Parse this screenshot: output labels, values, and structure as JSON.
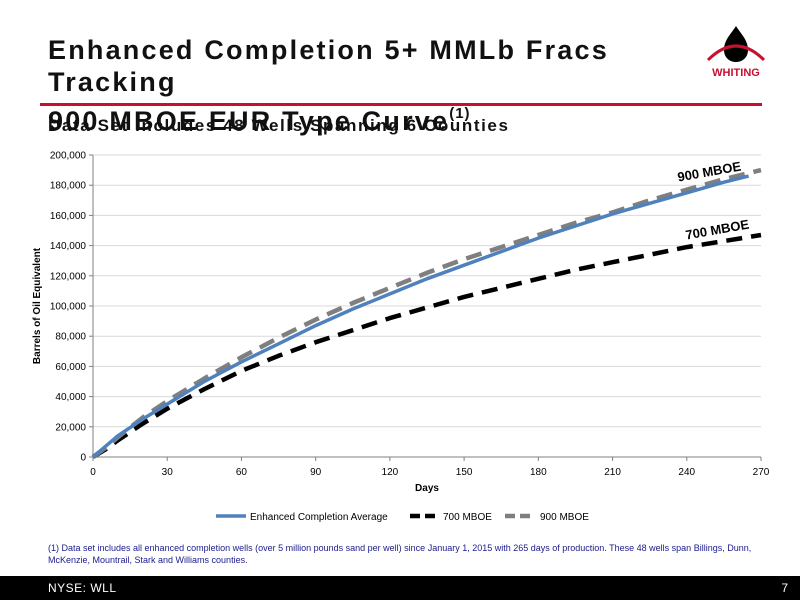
{
  "slide": {
    "title_line1": "Enhanced Completion 5+ MMLb Fracs Tracking",
    "title_line2": "900 MBOE EUR Type Curve",
    "title_superscript": "(1)",
    "subtitle": "Data Set Includes 48 Wells Spanning 6 Counties",
    "logo_text": "WHITING",
    "footnote": "(1) Data set includes all enhanced completion wells (over 5 million pounds sand per well) since January 1, 2015 with 265 days of production.  These 48 wells span Billings, Dunn, McKenzie, Mountrail, Stark and Williams counties.",
    "footer_ticker": "NYSE:  WLL",
    "page_number": "7"
  },
  "colors": {
    "accent_red": "#c8102e",
    "enhanced_line": "#4f81bd",
    "mboe_700_line": "#000000",
    "mboe_900_line": "#7f7f7f",
    "footnote_text": "#1a1a8c"
  },
  "chart_data": {
    "type": "line",
    "xlabel": "Days",
    "ylabel": "Barrels of Oil Equivalent",
    "xlim": [
      0,
      270
    ],
    "ylim": [
      0,
      200000
    ],
    "x_ticks": [
      "0",
      "30",
      "60",
      "90",
      "120",
      "150",
      "180",
      "210",
      "240",
      "270"
    ],
    "y_ticks": [
      "0",
      "20,000",
      "40,000",
      "60,000",
      "80,000",
      "100,000",
      "120,000",
      "140,000",
      "160,000",
      "180,000",
      "200,000"
    ],
    "grid": "horizontal",
    "legend_position": "bottom",
    "annotations": [
      "900 MBOE",
      "700 MBOE"
    ],
    "series": [
      {
        "name": "Enhanced Completion Average",
        "color": "#4f81bd",
        "style": "solid",
        "x": [
          0,
          5,
          10,
          20,
          30,
          45,
          60,
          75,
          90,
          105,
          120,
          135,
          150,
          165,
          180,
          195,
          210,
          225,
          240,
          255,
          265
        ],
        "y": [
          0,
          7000,
          14000,
          25000,
          35000,
          50000,
          63000,
          75000,
          87000,
          98000,
          108000,
          118000,
          127000,
          136000,
          145000,
          153000,
          161000,
          168000,
          175000,
          182000,
          186000
        ]
      },
      {
        "name": "700 MBOE",
        "color": "#000000",
        "style": "dashed",
        "x": [
          0,
          5,
          10,
          20,
          30,
          45,
          60,
          75,
          90,
          105,
          120,
          135,
          150,
          165,
          180,
          195,
          210,
          225,
          240,
          255,
          270
        ],
        "y": [
          0,
          5000,
          11000,
          22000,
          32000,
          45000,
          57000,
          67000,
          76000,
          84000,
          92000,
          99000,
          106000,
          112000,
          118000,
          124000,
          129000,
          134000,
          139000,
          143000,
          147000
        ]
      },
      {
        "name": "900 MBOE",
        "color": "#7f7f7f",
        "style": "dashed",
        "x": [
          0,
          5,
          10,
          20,
          30,
          45,
          60,
          75,
          90,
          105,
          120,
          135,
          150,
          165,
          180,
          195,
          210,
          225,
          240,
          255,
          270
        ],
        "y": [
          0,
          6000,
          13000,
          26000,
          37000,
          52000,
          66000,
          79000,
          91000,
          102000,
          112000,
          122000,
          131000,
          139000,
          147000,
          155000,
          162000,
          170000,
          177000,
          184000,
          190000
        ]
      }
    ]
  }
}
